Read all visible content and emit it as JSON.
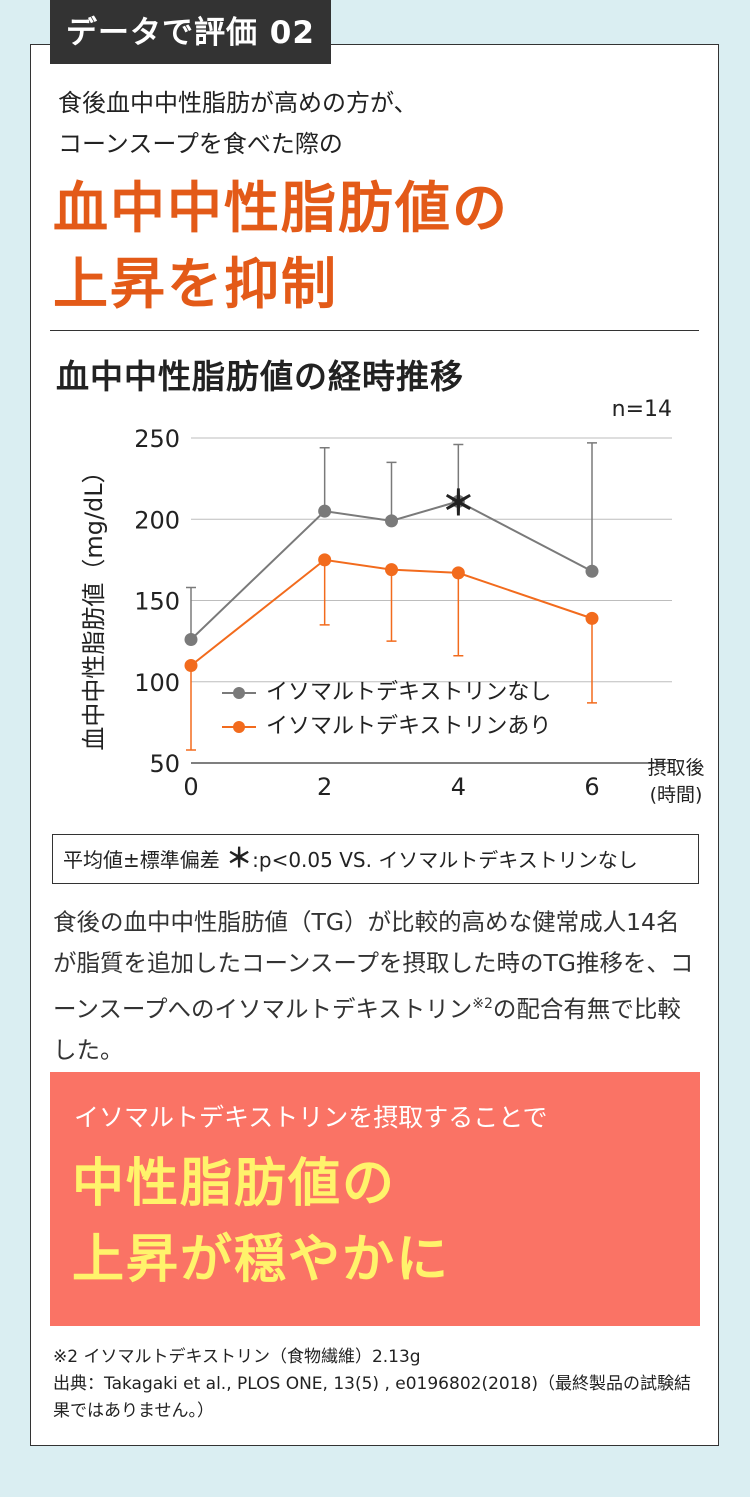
{
  "tag": "データで評価 02",
  "intro": [
    "食後血中中性脂肪が高めの方が、",
    "コーンスープを食べた際の"
  ],
  "headline": [
    "血中中性脂肪値の",
    "上昇を抑制"
  ],
  "chart_title": "血中中性脂肪値の経時推移",
  "colors": {
    "series_none": "#7a7a7a",
    "series_with": "#f26b1d",
    "accent": "#e35a18",
    "promo_bg": "#fa7365",
    "promo_text": "#fff36b"
  },
  "chart_data": {
    "type": "line",
    "n_label": "n=14",
    "ylabel": "血中中性脂肪値（mg/dL）",
    "xlabel": "摂取後\n(時間)",
    "ylim": [
      50,
      250
    ],
    "xlim": [
      0,
      6
    ],
    "yticks": [
      250,
      200,
      150,
      100,
      50
    ],
    "xticks": [
      0,
      2,
      4,
      6
    ],
    "grid": true,
    "series": [
      {
        "name": "イソマルトデキストリンなし",
        "color": "#7a7a7a",
        "x": [
          0,
          2,
          3,
          4,
          6
        ],
        "y": [
          126,
          205,
          199,
          211,
          168
        ],
        "err_upper": [
          158,
          244,
          235,
          246,
          247
        ],
        "err_lower": [
          null,
          null,
          null,
          null,
          null
        ]
      },
      {
        "name": "イソマルトデキストリンあり",
        "color": "#f26b1d",
        "x": [
          0,
          2,
          3,
          4,
          6
        ],
        "y": [
          110,
          175,
          169,
          167,
          139
        ],
        "err_upper": [
          null,
          null,
          null,
          null,
          null
        ],
        "err_lower": [
          58,
          135,
          125,
          116,
          87
        ]
      }
    ],
    "annotations": [
      {
        "x": 4,
        "text": "＊"
      }
    ],
    "legend": "bottom-center"
  },
  "note": {
    "prefix": "平均値",
    "pm": "±",
    "middle": "標準偏差",
    "star": "＊",
    "suffix": ":p<0.05 VS. イソマルトデキストリンなし"
  },
  "desc": {
    "text": "食後の血中中性脂肪値（TG）が比較的高めな健常成人14名が脂質を追加したコーンスープを摂取した時のTG推移を、コーンスープへのイソマルトデキストリン",
    "sup": "※2",
    "tail": "の配合有無で比較した。"
  },
  "promo": {
    "lead": "イソマルトデキストリンを摂取することで",
    "main": [
      "中性脂肪値の",
      "上昇が穏やかに"
    ]
  },
  "footnotes": [
    "※2 イソマルトデキストリン（食物繊維）2.13g",
    "出典：Takagaki et al., PLOS ONE, 13(5) , e0196802(2018)（最終製品の試験結果ではありません。）"
  ]
}
